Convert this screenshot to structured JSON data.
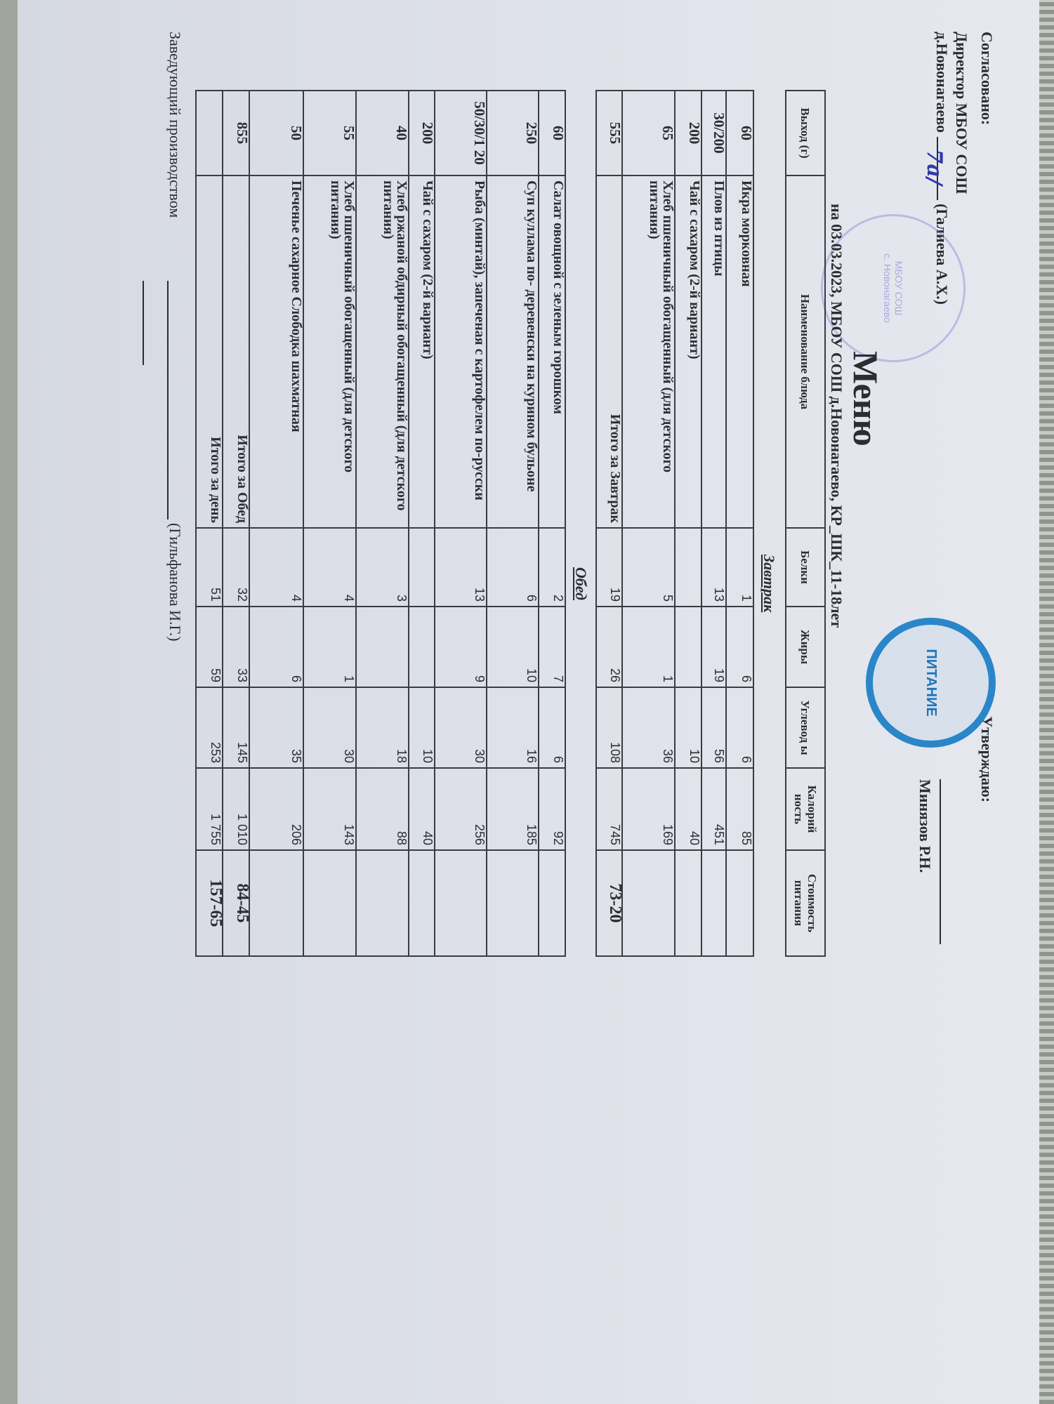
{
  "header": {
    "left": {
      "label": "Согласовано:",
      "line1": "Директор МБОУ СОШ",
      "line2_prefix": "д.Новонагаево",
      "line2_suffix": "(Галиева А.Х.)"
    },
    "right": {
      "label": "Утверждаю:",
      "name": "Минязов Р.Н."
    },
    "title": "Меню",
    "subtitle": "на 03.03.2023, МБОУ СОШ д.Новонагаево, КР_ШК_11-18лет"
  },
  "stamps": {
    "school": {
      "line1": "МБОУ СОШ",
      "line2": "с. Новонагаево",
      "color": "#7a7ad0"
    },
    "catering": {
      "text": "ПИТАНИЕ",
      "color": "#2a86c8"
    }
  },
  "columns": [
    "Выход (г)",
    "Наименование блюда",
    "Белки",
    "Жиры",
    "Углевод ы",
    "Калорий ность",
    "Стоимость питания"
  ],
  "breakfast": {
    "title": "Завтрак",
    "rows": [
      [
        "60",
        "Икра морковная",
        "1",
        "6",
        "6",
        "85",
        ""
      ],
      [
        "30/200",
        "Плов из птицы",
        "13",
        "19",
        "56",
        "451",
        ""
      ],
      [
        "200",
        "Чай с сахаром (2-й вариант)",
        "",
        "",
        "10",
        "40",
        ""
      ],
      [
        "65",
        "Хлеб пшеничный обогащенный (для детского питания)",
        "5",
        "1",
        "36",
        "169",
        ""
      ]
    ],
    "total": [
      "555",
      "Итого за Завтрак",
      "19",
      "26",
      "108",
      "745",
      "73-20"
    ]
  },
  "lunch": {
    "title": "Обед",
    "rows": [
      [
        "60",
        "Салат овощной с зеленым горошком",
        "2",
        "7",
        "6",
        "92",
        ""
      ],
      [
        "250",
        "Суп куллама по- деревенски на курином бульоне",
        "6",
        "10",
        "16",
        "185",
        ""
      ],
      [
        "50/30/1 20",
        "Рыба (минтай), запеченая с картофелем по-русски",
        "13",
        "9",
        "30",
        "256",
        ""
      ],
      [
        "200",
        "Чай с сахаром (2-й вариант)",
        "",
        "",
        "10",
        "40",
        ""
      ],
      [
        "40",
        "Хлеб ржаной обдирный обогащенный (для детского питания)",
        "3",
        "",
        "18",
        "88",
        ""
      ],
      [
        "55",
        "Хлеб пшеничный обогащенный (для детского питания)",
        "4",
        "1",
        "30",
        "143",
        ""
      ],
      [
        "50",
        "Печенье сахарное Слободка шахматная",
        "4",
        "6",
        "35",
        "206",
        ""
      ]
    ],
    "total": [
      "855",
      "Итого за Обед",
      "32",
      "33",
      "145",
      "1 010",
      "84-45"
    ],
    "day_total": [
      "",
      "Итого за день",
      "51",
      "59",
      "253",
      "1 755",
      "157-65"
    ]
  },
  "footer": {
    "role": "Заведующий производством",
    "name": "(Гильфанова И.Г.)"
  }
}
